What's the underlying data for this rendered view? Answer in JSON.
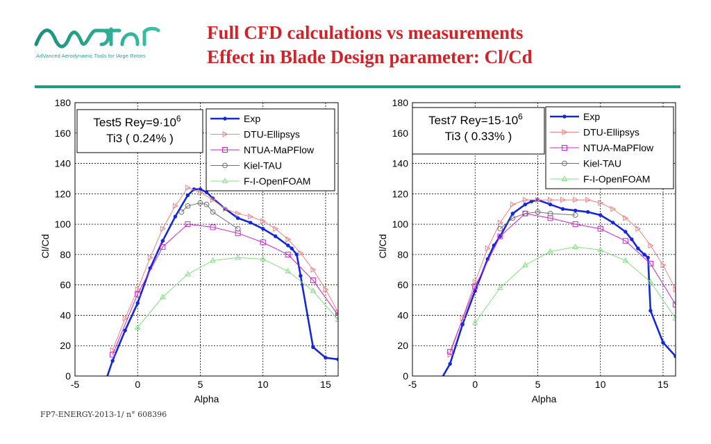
{
  "header": {
    "logo_text": "AVATAR",
    "logo_tagline": "AdVanced Aerodynamic Tools for lArge Rotors",
    "title_line1": "Full CFD calculations vs measurements",
    "title_line2": "Effect in Blade Design parameter: Cl/Cd"
  },
  "footer": {
    "text": "FP7-ENERGY-2013-1/ n° 608396"
  },
  "colors": {
    "exp": "#1428d8",
    "dtu": "#f08080",
    "ntua": "#d020d0",
    "kiel": "#707070",
    "foam": "#80e080",
    "title": "#d42027",
    "rule": "#1a9e78"
  },
  "chart_data": [
    {
      "type": "line",
      "annotation_line1": "Test5 Rey=9·10",
      "annotation_exp": "6",
      "annotation_line2": "Ti3 ( 0.24% )",
      "xlabel": "Alpha",
      "ylabel": "Cl/Cd",
      "xlim": [
        -5,
        16
      ],
      "ylim": [
        0,
        180
      ],
      "xticks": [
        -5,
        0,
        5,
        10,
        15
      ],
      "yticks": [
        0,
        20,
        40,
        60,
        80,
        100,
        120,
        140,
        160,
        180
      ],
      "grid": true,
      "legend_position": "top-right",
      "series": [
        {
          "name": "Exp",
          "x": [
            -2.5,
            -2,
            -1,
            0,
            1,
            2,
            3,
            4,
            4.5,
            5,
            5.5,
            6,
            7,
            8,
            9,
            10,
            11,
            12,
            12.3,
            12.7,
            13,
            14,
            15,
            16
          ],
          "y": [
            -2,
            10,
            30,
            48,
            71,
            89,
            105,
            119,
            123,
            123,
            121,
            117,
            110,
            104,
            101,
            97,
            92,
            86,
            84,
            80,
            66,
            19,
            12,
            11
          ]
        },
        {
          "name": "DTU-Ellipsys",
          "x": [
            -2,
            -1,
            0,
            1,
            2,
            3,
            4,
            5,
            6,
            7,
            8,
            9,
            10,
            11,
            12,
            13,
            14,
            15,
            16
          ],
          "y": [
            17,
            38,
            57,
            78,
            97,
            112,
            124,
            121,
            116,
            110,
            107,
            105,
            102,
            97,
            90,
            81,
            70,
            57,
            42
          ]
        },
        {
          "name": "NTUA-MaPFlow",
          "x": [
            -2,
            0,
            2,
            4,
            6,
            8,
            10,
            12,
            14,
            16
          ],
          "y": [
            14,
            54,
            85,
            100,
            98,
            94,
            88,
            80,
            63,
            40
          ]
        },
        {
          "name": "Kiel-TAU",
          "x": [
            3.5,
            4,
            5,
            5.5,
            6,
            8
          ],
          "y": [
            108,
            112,
            114,
            113,
            108,
            97
          ]
        },
        {
          "name": "F-I-OpenFOAM",
          "x": [
            0,
            2,
            4,
            6,
            8,
            10,
            12,
            14,
            16
          ],
          "y": [
            32,
            52,
            67,
            76,
            78,
            77,
            69,
            56,
            37
          ]
        }
      ]
    },
    {
      "type": "line",
      "annotation_line1": "Test7 Rey=15·10",
      "annotation_exp": "6",
      "annotation_line2": "Ti3 ( 0.33% )",
      "xlabel": "Alpha",
      "ylabel": "Cl/Cd",
      "xlim": [
        -5,
        16
      ],
      "ylim": [
        0,
        180
      ],
      "xticks": [
        -5,
        0,
        5,
        10,
        15
      ],
      "yticks": [
        0,
        20,
        40,
        60,
        80,
        100,
        120,
        140,
        160,
        180
      ],
      "grid": true,
      "legend_position": "top-right",
      "series": [
        {
          "name": "Exp",
          "x": [
            -2.7,
            -2,
            -1,
            0,
            1,
            1.5,
            2,
            3,
            4,
            4.5,
            5,
            6,
            7,
            8,
            9,
            10,
            11,
            12,
            12.5,
            13,
            13.5,
            13.8,
            14,
            15,
            16
          ],
          "y": [
            -2,
            8,
            34,
            56,
            77,
            86,
            92,
            107,
            113,
            115,
            116,
            113,
            110,
            109,
            108,
            106,
            101,
            95,
            90,
            84,
            80,
            78,
            43,
            22,
            13
          ]
        },
        {
          "name": "DTU-Ellipsys",
          "x": [
            -2,
            -1,
            0,
            1,
            2,
            3,
            4,
            5,
            6,
            7,
            8,
            9,
            10,
            11,
            12,
            13,
            14,
            15,
            16
          ],
          "y": [
            14,
            38,
            62,
            84,
            101,
            113,
            116,
            116,
            116,
            116,
            116,
            116,
            114,
            110,
            104,
            97,
            86,
            73,
            57
          ]
        },
        {
          "name": "NTUA-MaPFlow",
          "x": [
            -2,
            0,
            2,
            4,
            6,
            8,
            10,
            12,
            14,
            16
          ],
          "y": [
            16,
            59,
            92,
            107,
            104,
            100,
            97,
            89,
            74,
            47
          ]
        },
        {
          "name": "Kiel-TAU",
          "x": [
            2,
            3,
            4,
            5,
            6,
            8
          ],
          "y": [
            97,
            104,
            107,
            108,
            107,
            106
          ]
        },
        {
          "name": "F-I-OpenFOAM",
          "x": [
            0,
            2,
            4,
            6,
            8,
            10,
            12,
            14,
            16
          ],
          "y": [
            35,
            58,
            73,
            82,
            85,
            83,
            76,
            62,
            38
          ]
        }
      ]
    }
  ]
}
